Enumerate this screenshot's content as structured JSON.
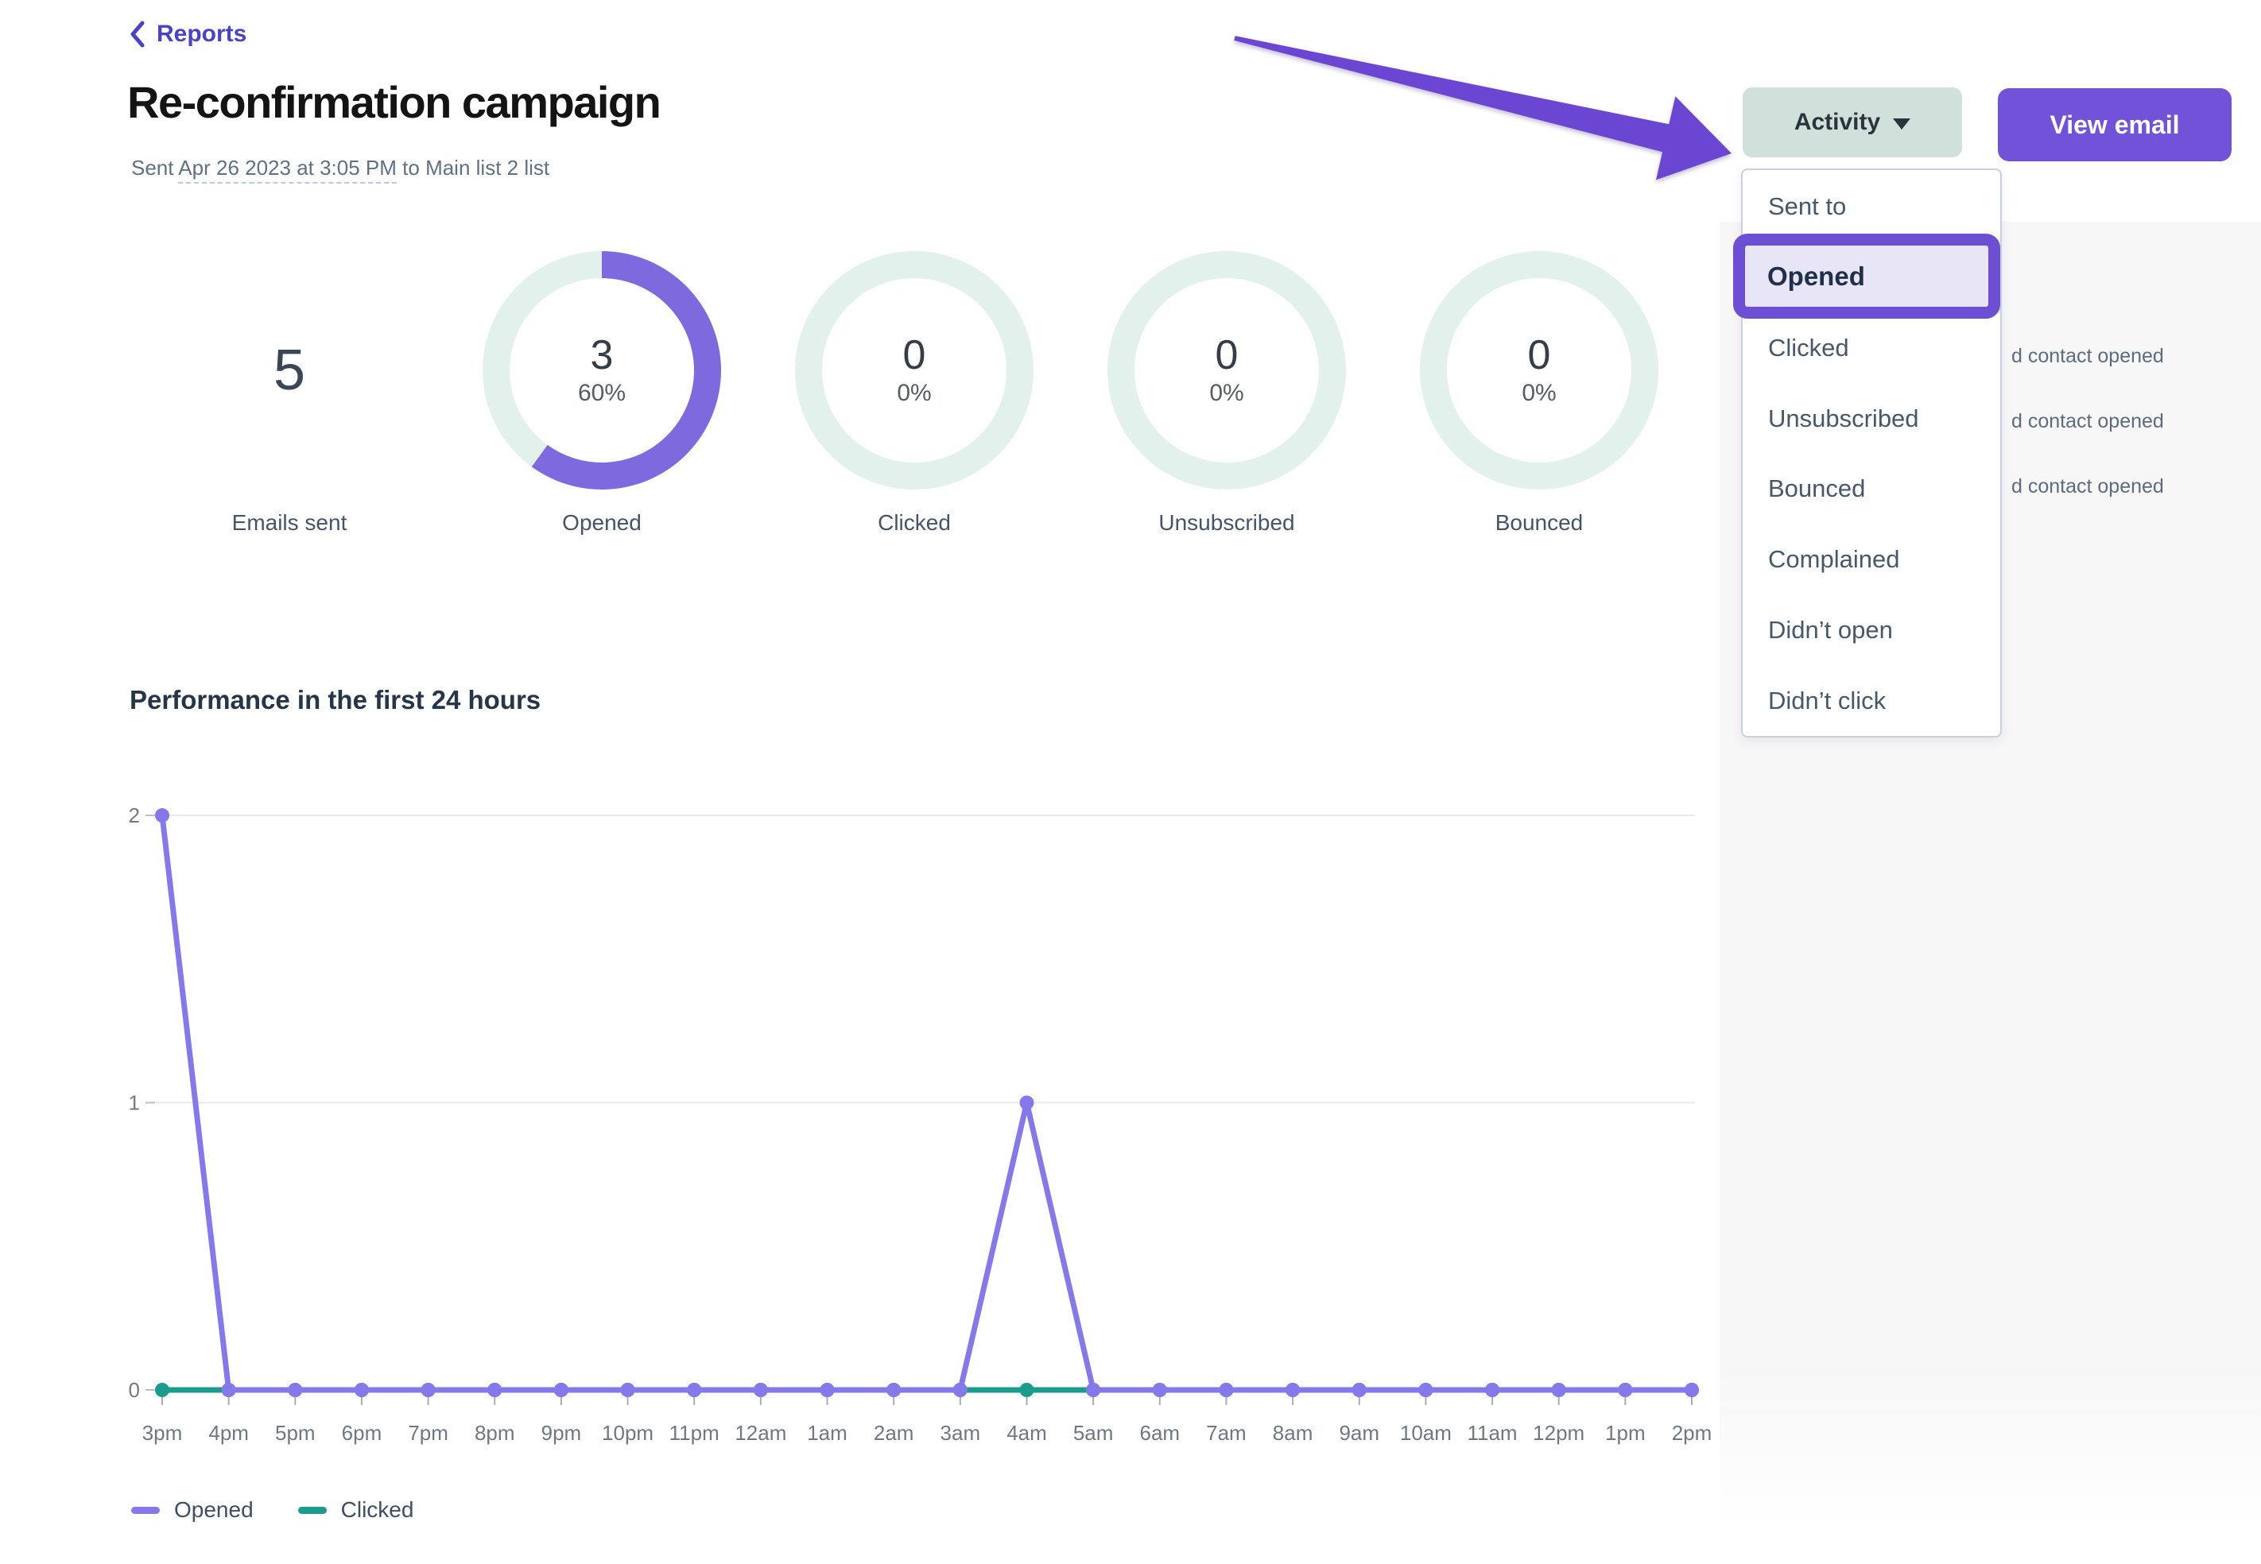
{
  "colors": {
    "accent_purple": "#7e6ade",
    "mint_ring": "#e3f1ec",
    "line_purple": "#8478ea",
    "teal": "#1a9b8b",
    "button_purple": "#7152d8",
    "sage_button": "#cfe1da",
    "annotation_purple": "#6c4fd3"
  },
  "breadcrumb": {
    "back_label": "Reports"
  },
  "header": {
    "title": "Re-confirmation campaign",
    "sent_prefix": "Sent",
    "sent_date": "Apr 26 2023 at 3:05 PM",
    "sent_suffix": "to Main list 2 list"
  },
  "actions": {
    "activity_label": "Activity",
    "view_email_label": "View email"
  },
  "stats": [
    {
      "label": "Emails sent",
      "value": "5",
      "kind": "number"
    },
    {
      "label": "Opened",
      "value": "3",
      "percent": "60%",
      "kind": "donut"
    },
    {
      "label": "Clicked",
      "value": "0",
      "percent": "0%",
      "kind": "donut"
    },
    {
      "label": "Unsubscribed",
      "value": "0",
      "percent": "0%",
      "kind": "donut"
    },
    {
      "label": "Bounced",
      "value": "0",
      "percent": "0%",
      "kind": "donut"
    }
  ],
  "dropdown": {
    "selected": "Opened",
    "items": [
      "Sent to",
      "Opened",
      "Clicked",
      "Unsubscribed",
      "Bounced",
      "Complained",
      "Didn’t open",
      "Didn’t click"
    ]
  },
  "background_rows": [
    "d contact opened",
    "d contact opened",
    "d contact opened"
  ],
  "chart_data": {
    "type": "line",
    "title": "Performance in the first 24 hours",
    "x": [
      "3pm",
      "4pm",
      "5pm",
      "6pm",
      "7pm",
      "8pm",
      "9pm",
      "10pm",
      "11pm",
      "12am",
      "1am",
      "2am",
      "3am",
      "4am",
      "5am",
      "6am",
      "7am",
      "8am",
      "9am",
      "10am",
      "11am",
      "12pm",
      "1pm",
      "2pm"
    ],
    "series": [
      {
        "name": "Opened",
        "color": "#8478ea",
        "values": [
          2,
          0,
          0,
          0,
          0,
          0,
          0,
          0,
          0,
          0,
          0,
          0,
          0,
          1,
          0,
          0,
          0,
          0,
          0,
          0,
          0,
          0,
          0,
          0
        ]
      },
      {
        "name": "Clicked",
        "color": "#1a9b8b",
        "values": [
          0,
          0,
          0,
          0,
          0,
          0,
          0,
          0,
          0,
          0,
          0,
          0,
          0,
          0,
          0,
          0,
          0,
          0,
          0,
          0,
          0,
          0,
          0,
          0
        ]
      }
    ],
    "ylim": [
      0,
      2
    ],
    "yticks": [
      0,
      1,
      2
    ],
    "grid": "horizontal",
    "legend_position": "bottom-left"
  }
}
